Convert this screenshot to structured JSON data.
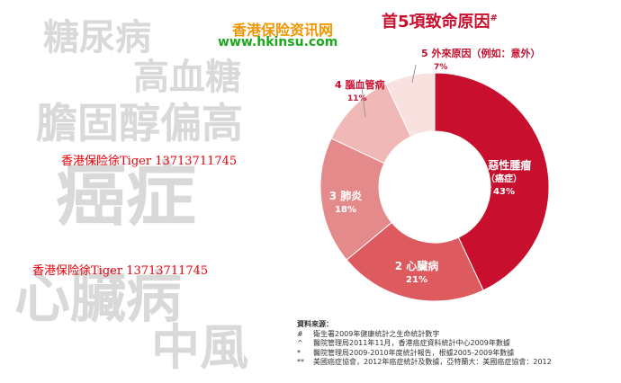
{
  "background_words": [
    "糖尿病",
    "高血糖",
    "膽固醇偏高",
    "癌症",
    "心臟病",
    "中風"
  ],
  "watermarks": [
    "香港保险徐Tiger 13713711745",
    "香港保险徐Tiger 13713711745"
  ],
  "site": {
    "name": "香港保险资讯网",
    "url": "www.hkinsu.com"
  },
  "colors": {
    "title": "#c8102e",
    "site_name": "#f29500",
    "site_url": "#1ea81e",
    "watermark": "#e8000b",
    "background_words": "#d9d9d9"
  },
  "chart_data": {
    "type": "pie",
    "title": "首5項致命原因",
    "title_mark": "#",
    "donut": true,
    "slices": [
      {
        "rank": "1",
        "label": "惡性腫瘤",
        "sublabel": "（癌症）",
        "value": 43,
        "value_label": "43%",
        "color": "#c8102e"
      },
      {
        "rank": "2",
        "label": "心臟病",
        "sublabel": "",
        "value": 21,
        "value_label": "21%",
        "color": "#dd5a5e"
      },
      {
        "rank": "3",
        "label": "肺炎",
        "sublabel": "",
        "value": 18,
        "value_label": "18%",
        "color": "#e58a8b"
      },
      {
        "rank": "4",
        "label": "腦血管病",
        "sublabel": "",
        "value": 11,
        "value_label": "11%",
        "color": "#f0b9b8"
      },
      {
        "rank": "5",
        "label": "外來原因（例如：意外）",
        "sublabel": "",
        "value": 7,
        "value_label": "7%",
        "color": "#f8e1df"
      }
    ]
  },
  "sources": {
    "title": "資料來源：",
    "items": [
      {
        "mark": "#",
        "text": "衛生署2009年健康統計之生命統計數字"
      },
      {
        "mark": "^",
        "text": "醫院管理局2011年11月，香港癌症資料統計中心2009年數據"
      },
      {
        "mark": "*",
        "text": "醫院管理局2009-2010年度統計報告，根據2005-2009年數據"
      },
      {
        "mark": "**",
        "text": "美國癌症協會，2012年癌症統計及數據，亞特蘭大：美國癌症協會：2012"
      }
    ]
  }
}
